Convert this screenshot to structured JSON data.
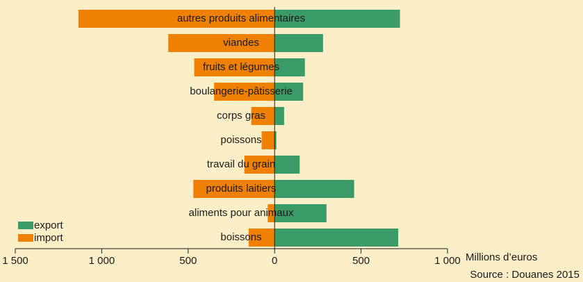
{
  "chart_data": {
    "type": "bar",
    "orientation": "horizontal",
    "categories": [
      "autres produits alimentaires",
      "viandes",
      "fruits et légumes",
      "boulangerie-pâtisserie",
      "corps gras",
      "poissons",
      "travail du grain",
      "produits laitiers",
      "aliments pour animaux",
      "boissons"
    ],
    "series": [
      {
        "name": "export",
        "color": "#3a9a68",
        "values": [
          725,
          280,
          175,
          165,
          55,
          10,
          145,
          460,
          300,
          715
        ]
      },
      {
        "name": "import",
        "color": "#f08000",
        "values": [
          -1135,
          -615,
          -465,
          -350,
          -135,
          -75,
          -175,
          -470,
          -40,
          -150
        ]
      }
    ],
    "xlim": [
      -1500,
      1000
    ],
    "xticks": [
      {
        "value": -1500,
        "label": "1 500"
      },
      {
        "value": -1000,
        "label": "1 000"
      },
      {
        "value": -500,
        "label": "500"
      },
      0,
      500,
      {
        "value": 1000,
        "label": "1 000"
      }
    ],
    "xlabel": "Millions d’euros",
    "source": "Source : Douanes 2015",
    "legend": "lower left"
  }
}
